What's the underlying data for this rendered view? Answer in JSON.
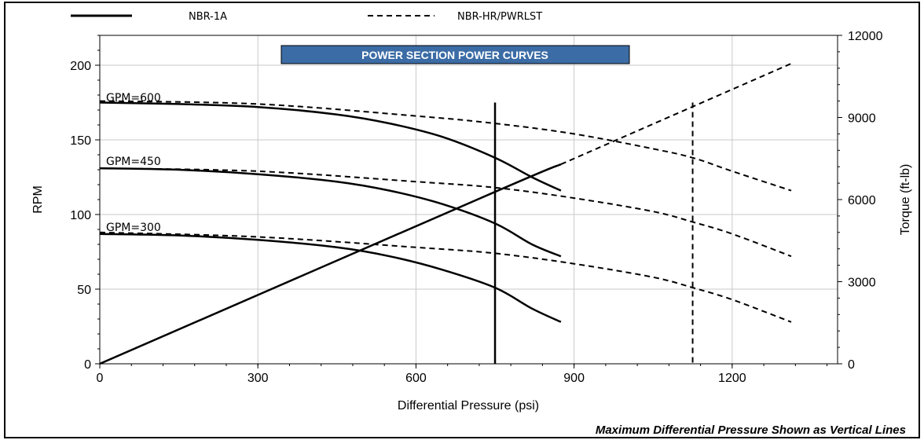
{
  "chart_data": {
    "type": "line",
    "title": "POWER SECTION POWER CURVES",
    "xlabel": "Differential Pressure (psi)",
    "ylabel": "RPM",
    "y2label": "Torque (ft-lb)",
    "xlim": [
      0,
      1400
    ],
    "ylim": [
      0,
      220
    ],
    "y2lim": [
      0,
      12000
    ],
    "xticks": [
      "0",
      "300",
      "600",
      "900",
      "1200"
    ],
    "yticks": [
      "0",
      "50",
      "100",
      "150",
      "200"
    ],
    "y2ticks": [
      "0",
      "3000",
      "6000",
      "9000",
      "12000"
    ],
    "grid": true,
    "legend": [
      {
        "label": "NBR-1A",
        "style": "solid"
      },
      {
        "label": "NBR-HR/PWRLST",
        "style": "dashed"
      }
    ],
    "curve_labels": [
      "GPM=600",
      "GPM=450",
      "GPM=300"
    ],
    "footnote": "Maximum Differential Pressure Shown as Vertical Lines",
    "series": [
      {
        "group": "NBR-1A",
        "axis": "rpm",
        "style": "solid",
        "x": [
          0,
          150,
          300,
          450,
          550,
          650,
          750,
          820,
          875
        ],
        "y": [
          175,
          174,
          172,
          167,
          161,
          152,
          138,
          125,
          116
        ]
      },
      {
        "group": "NBR-1A",
        "axis": "rpm",
        "style": "solid",
        "x": [
          0,
          150,
          300,
          450,
          550,
          650,
          750,
          820,
          875
        ],
        "y": [
          131,
          130,
          127,
          122,
          116,
          107,
          94,
          80,
          72
        ]
      },
      {
        "group": "NBR-1A",
        "axis": "rpm",
        "style": "solid",
        "x": [
          0,
          150,
          300,
          450,
          550,
          650,
          750,
          820,
          875
        ],
        "y": [
          87,
          86,
          83,
          78,
          72,
          63,
          51,
          37,
          28
        ]
      },
      {
        "group": "NBR-1A",
        "axis": "torque",
        "style": "solid",
        "x": [
          0,
          750,
          875
        ],
        "y": [
          0,
          6280,
          7290
        ]
      },
      {
        "group": "NBR-HR/PWRLST",
        "axis": "rpm",
        "style": "dashed",
        "x": [
          0,
          300,
          600,
          750,
          900,
          1050,
          1125,
          1200,
          1312
        ],
        "y": [
          176,
          174,
          166,
          161,
          154,
          144,
          138,
          129,
          116
        ]
      },
      {
        "group": "NBR-HR/PWRLST",
        "axis": "rpm",
        "style": "dashed",
        "x": [
          0,
          300,
          600,
          750,
          900,
          1050,
          1125,
          1200,
          1312
        ],
        "y": [
          131,
          129,
          122,
          118,
          111,
          102,
          95,
          87,
          72
        ]
      },
      {
        "group": "NBR-HR/PWRLST",
        "axis": "rpm",
        "style": "dashed",
        "x": [
          0,
          300,
          600,
          750,
          900,
          1050,
          1125,
          1200,
          1312
        ],
        "y": [
          88,
          85,
          78,
          74,
          67,
          58,
          51,
          43,
          28
        ]
      },
      {
        "group": "NBR-HR/PWRLST",
        "axis": "torque",
        "style": "dashed",
        "x": [
          875,
          1312
        ],
        "y": [
          7290,
          10970
        ]
      }
    ],
    "max_pressure_lines": [
      {
        "group": "NBR-1A",
        "style": "solid",
        "x": 750,
        "y_top": 175
      },
      {
        "group": "NBR-HR/PWRLST",
        "style": "dashed",
        "x": 1125,
        "y_top": 175
      }
    ]
  }
}
